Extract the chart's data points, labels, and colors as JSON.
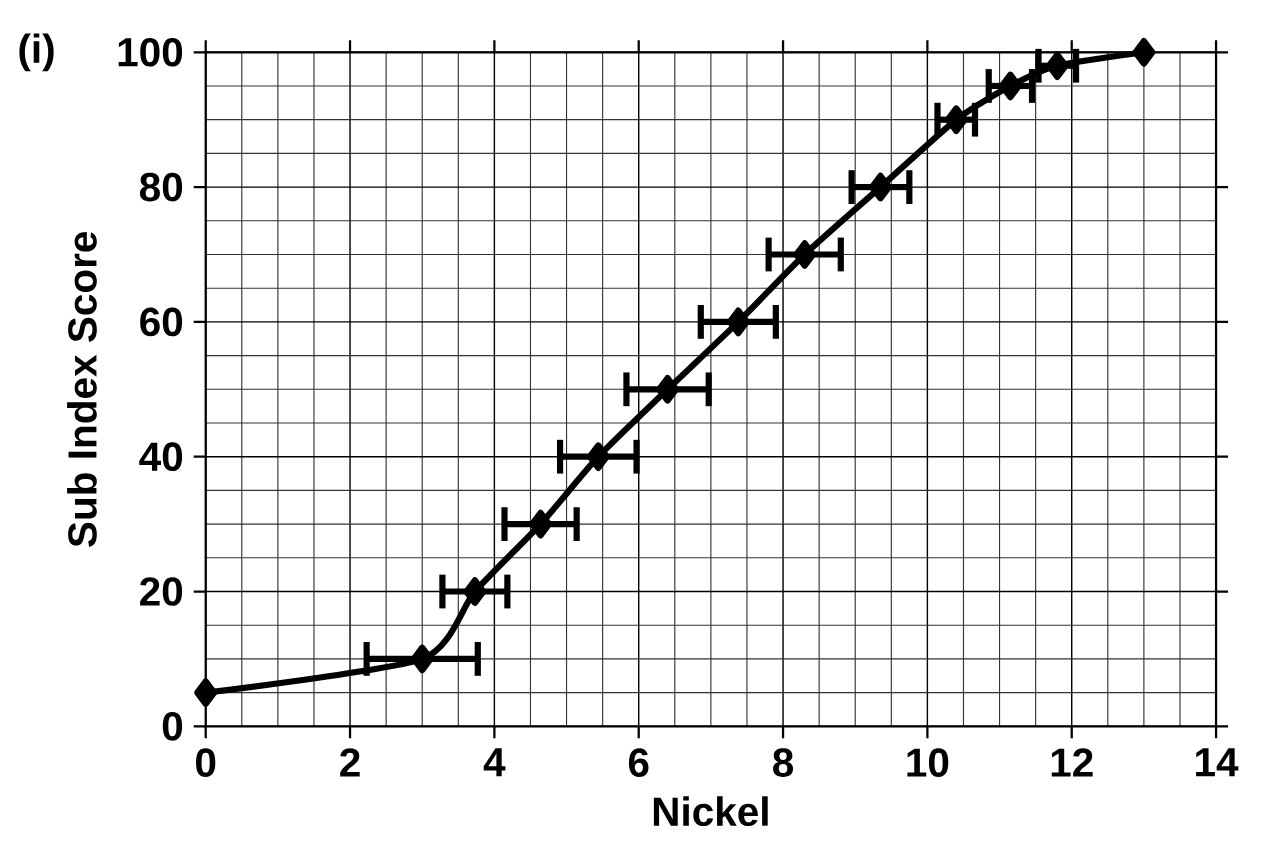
{
  "chart_data": {
    "type": "line",
    "xlabel": "Nickel",
    "ylabel": "Sub Index Score",
    "annotations": [
      "(i)"
    ],
    "series": [
      {
        "color": "#000000",
        "x": [
          0,
          3,
          3.73,
          4.64,
          5.44,
          6.4,
          7.38,
          8.3,
          9.35,
          10.4,
          11.15,
          11.8,
          13
        ],
        "values": [
          5,
          10,
          20,
          30,
          40,
          50,
          60,
          70,
          80,
          90,
          95,
          98,
          100
        ],
        "xerrors": [
          null,
          0.77,
          0.45,
          0.5,
          0.53,
          0.57,
          0.52,
          0.5,
          0.4,
          0.26,
          0.3,
          0.26,
          null
        ]
      }
    ],
    "xlim": [
      0,
      14
    ],
    "xticks": [
      0,
      2,
      4,
      6,
      8,
      10,
      12,
      14
    ],
    "ylim": [
      0,
      100
    ],
    "yticks": [
      0,
      20,
      40,
      60,
      80,
      100
    ],
    "grid": true,
    "marker": "diamond",
    "line_style": "solid"
  }
}
